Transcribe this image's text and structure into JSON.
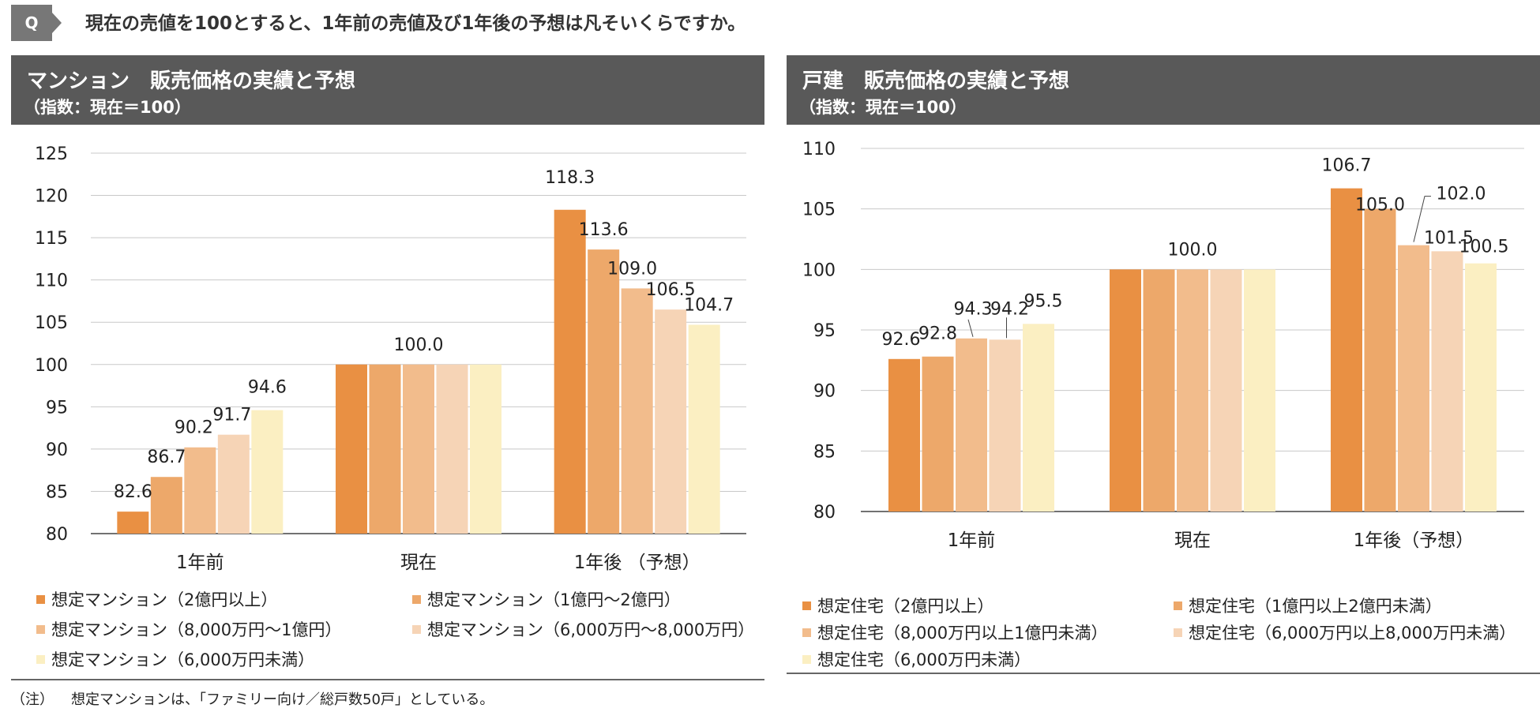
{
  "question": {
    "badge": "Q",
    "text": "現在の売値を100とすると、1年前の売値及び1年後の予想は凡そいくらですか。"
  },
  "colors": [
    "#E99043",
    "#EDA86A",
    "#F2BC8C",
    "#F6D4B6",
    "#FBEFC2"
  ],
  "chart_data": [
    {
      "type": "bar",
      "title": "マンション　販売価格の実績と予想",
      "subtitle": "（指数：現在＝100）",
      "categories": [
        "1年前",
        "現在",
        "1年後 （予想）"
      ],
      "ylim": [
        80,
        125
      ],
      "yticks": [
        80,
        85,
        90,
        95,
        100,
        105,
        110,
        115,
        120,
        125
      ],
      "grid": true,
      "series": [
        {
          "name": "想定マンション（2億円以上）",
          "values": [
            82.6,
            100.0,
            118.3
          ]
        },
        {
          "name": "想定マンション（1億円～2億円）",
          "values": [
            86.7,
            100.0,
            113.6
          ]
        },
        {
          "name": "想定マンション（8,000万円～1億円）",
          "values": [
            90.2,
            100.0,
            109.0
          ]
        },
        {
          "name": "想定マンション（6,000万円～8,000万円）",
          "values": [
            91.7,
            100.0,
            106.5
          ]
        },
        {
          "name": "想定マンション（6,000万円未満）",
          "values": [
            94.6,
            100.0,
            104.7
          ]
        }
      ],
      "data_labels": [
        [
          "82.6",
          "86.7",
          "90.2",
          "91.7",
          "94.6"
        ],
        [
          "100.0"
        ],
        [
          "118.3",
          "113.6",
          "109.0",
          "106.5",
          "104.7"
        ]
      ]
    },
    {
      "type": "bar",
      "title": "戸建　販売価格の実績と予想",
      "subtitle": "（指数：現在＝100）",
      "categories": [
        "1年前",
        "現在",
        "1年後（予想）"
      ],
      "ylim": [
        80,
        110
      ],
      "yticks": [
        80,
        85,
        90,
        95,
        100,
        105,
        110
      ],
      "grid": true,
      "series": [
        {
          "name": "想定住宅（2億円以上）",
          "values": [
            92.6,
            100.0,
            106.7
          ]
        },
        {
          "name": "想定住宅（1億円以上2億円未満）",
          "values": [
            92.8,
            100.0,
            105.0
          ]
        },
        {
          "name": "想定住宅（8,000万円以上1億円未満）",
          "values": [
            94.3,
            100.0,
            102.0
          ]
        },
        {
          "name": "想定住宅（6,000万円以上8,000万円未満）",
          "values": [
            94.2,
            100.0,
            101.5
          ]
        },
        {
          "name": "想定住宅（6,000万円未満）",
          "values": [
            95.5,
            100.0,
            100.5
          ]
        }
      ],
      "data_labels": [
        [
          "92.6",
          "92.8",
          "94.3",
          "94.2",
          "95.5"
        ],
        [
          "100.0"
        ],
        [
          "106.7",
          "105.0",
          "102.0",
          "101.5",
          "100.5"
        ]
      ]
    }
  ],
  "note": {
    "label": "（注）",
    "text": "想定マンションは、「ファミリー向け／総戸数50戸」としている。"
  }
}
